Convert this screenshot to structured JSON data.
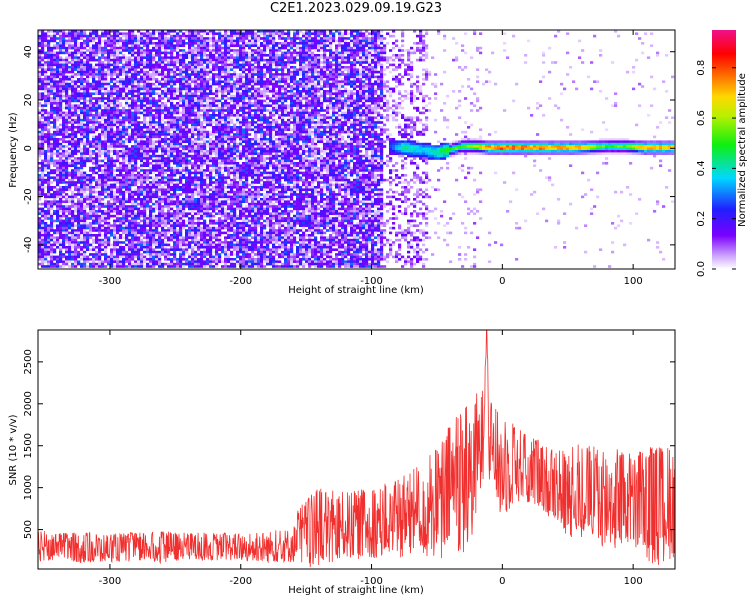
{
  "title": "C2E1.2023.029.09.19.G23",
  "colors": {
    "spectral_low": "#ffffff",
    "spectral_high": "#7b00ff",
    "snr_line": "#f0302e"
  },
  "chart_data": [
    {
      "type": "heatmap",
      "title": "C2E1.2023.029.09.19.G23",
      "xlabel": "Height of straight line (km)",
      "ylabel": "Frequency (Hz)",
      "xlim": [
        -355,
        132
      ],
      "ylim": [
        -50,
        49
      ],
      "xticks": [
        -300,
        -200,
        -100,
        0,
        100
      ],
      "yticks": [
        -40,
        -20,
        0,
        20,
        40
      ],
      "colorbar": {
        "label": "Normalized spectral amplitude",
        "range": [
          0.0,
          0.95
        ],
        "ticks": [
          0.0,
          0.2,
          0.4,
          0.6,
          0.8
        ],
        "colormap": "rainbow (purple → blue → cyan → green → yellow → red → magenta)"
      },
      "description_bands": [
        {
          "x_range": [
            -355,
            -90
          ],
          "content": "broadband noise, amplitude ~0.05–0.15 across all frequencies"
        },
        {
          "x_range": [
            -90,
            -55
          ],
          "content": "partial noise plus emerging signal near 0 Hz"
        },
        {
          "x_range": [
            -55,
            132
          ],
          "content": "strong narrow signal at ~0 Hz (amplitude up to ~0.9), sparse noise elsewhere"
        }
      ],
      "signal_track": {
        "x": [
          -87,
          -75,
          -60,
          -50,
          -40,
          -30,
          -20,
          -10,
          0,
          20,
          40,
          60,
          80,
          95,
          110,
          132
        ],
        "frequency": [
          0.5,
          0,
          -1,
          -2,
          -1,
          0.5,
          0.5,
          0,
          0,
          0,
          0,
          0,
          0.5,
          0.5,
          0,
          0
        ],
        "amplitude": [
          0.25,
          0.45,
          0.4,
          0.45,
          0.55,
          0.6,
          0.7,
          0.85,
          0.9,
          0.88,
          0.85,
          0.8,
          0.55,
          0.6,
          0.85,
          0.8
        ]
      }
    },
    {
      "type": "line",
      "xlabel": "Height of straight line (km)",
      "ylabel": "SNR (10 * v/v)",
      "xlim": [
        -355,
        132
      ],
      "ylim": [
        30,
        2880
      ],
      "xticks": [
        -300,
        -200,
        -100,
        0,
        100
      ],
      "yticks": [
        500,
        1000,
        1500,
        2000,
        2500
      ],
      "series": [
        {
          "x": [
            -355,
            -340,
            -320,
            -300,
            -280,
            -260,
            -240,
            -220,
            -200,
            -180,
            -160,
            -155,
            -140,
            -120,
            -100,
            -80,
            -60,
            -45,
            -40,
            -30,
            -20,
            -15,
            -12,
            -10,
            0,
            10,
            20,
            30,
            40,
            50,
            60,
            70,
            80,
            90,
            100,
            110,
            120,
            132
          ],
          "values": [
            300,
            310,
            290,
            290,
            300,
            300,
            300,
            310,
            300,
            300,
            320,
            460,
            520,
            560,
            600,
            650,
            750,
            900,
            1050,
            1150,
            1350,
            1600,
            2880,
            1600,
            1250,
            1300,
            1250,
            1150,
            1050,
            950,
            1000,
            950,
            900,
            880,
            850,
            850,
            800,
            900
          ],
          "peak_envelope": [
            500,
            460,
            470,
            450,
            470,
            480,
            460,
            470,
            460,
            480,
            520,
            800,
            1000,
            950,
            1000,
            1100,
            1300,
            1600,
            1800,
            2000,
            2150,
            2200,
            2880,
            2050,
            1850,
            1750,
            1650,
            1550,
            1450,
            1450,
            1550,
            1500,
            1500,
            1450,
            1400,
            1500,
            1500,
            1550
          ]
        }
      ]
    }
  ]
}
